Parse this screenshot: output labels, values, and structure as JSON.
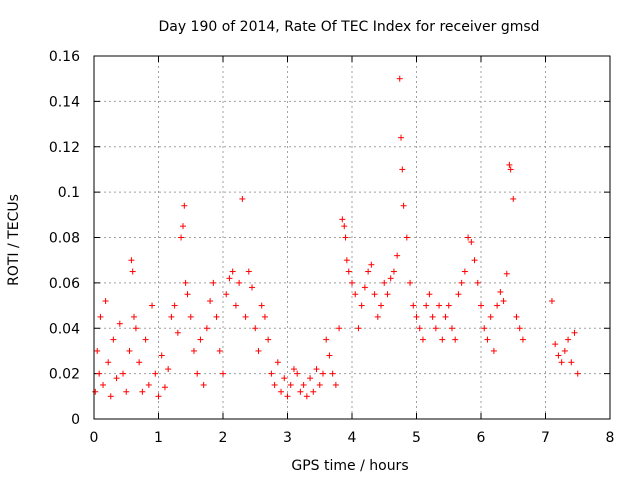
{
  "chart_data": {
    "type": "scatter",
    "title": "Day 190 of 2014, Rate Of TEC Index for receiver gmsd",
    "xlabel": "GPS time / hours",
    "ylabel": "ROTI / TECUs",
    "xlim": [
      0,
      8
    ],
    "ylim": [
      0,
      0.16
    ],
    "grid": true,
    "marker": "+",
    "color": "#ff0000",
    "xticks": [
      "0",
      "1",
      "2",
      "3",
      "4",
      "5",
      "6",
      "7",
      "8"
    ],
    "yticks": [
      "0",
      "0.02",
      "0.04",
      "0.06",
      "0.08",
      "0.1",
      "0.12",
      "0.14",
      "0.16"
    ],
    "series": [
      {
        "name": "ROTI",
        "x": [
          0.02,
          0.05,
          0.08,
          0.1,
          0.14,
          0.18,
          0.22,
          0.26,
          0.3,
          0.35,
          0.4,
          0.45,
          0.5,
          0.55,
          0.58,
          0.6,
          0.62,
          0.65,
          0.7,
          0.75,
          0.8,
          0.85,
          0.9,
          0.95,
          1.0,
          1.05,
          1.1,
          1.15,
          1.2,
          1.25,
          1.3,
          1.35,
          1.38,
          1.4,
          1.42,
          1.45,
          1.5,
          1.55,
          1.6,
          1.65,
          1.7,
          1.75,
          1.8,
          1.85,
          1.9,
          1.95,
          2.0,
          2.05,
          2.1,
          2.15,
          2.2,
          2.25,
          2.3,
          2.35,
          2.4,
          2.45,
          2.5,
          2.55,
          2.6,
          2.65,
          2.7,
          2.75,
          2.8,
          2.85,
          2.9,
          2.95,
          3.0,
          3.05,
          3.1,
          3.15,
          3.2,
          3.25,
          3.3,
          3.35,
          3.4,
          3.45,
          3.5,
          3.55,
          3.6,
          3.65,
          3.7,
          3.75,
          3.8,
          3.85,
          3.88,
          3.9,
          3.92,
          3.95,
          4.0,
          4.05,
          4.1,
          4.15,
          4.2,
          4.25,
          4.3,
          4.35,
          4.4,
          4.45,
          4.5,
          4.55,
          4.6,
          4.65,
          4.7,
          4.74,
          4.76,
          4.78,
          4.8,
          4.85,
          4.9,
          4.95,
          5.0,
          5.05,
          5.1,
          5.15,
          5.2,
          5.25,
          5.3,
          5.35,
          5.4,
          5.45,
          5.5,
          5.55,
          5.6,
          5.65,
          5.7,
          5.75,
          5.8,
          5.85,
          5.9,
          5.95,
          6.0,
          6.05,
          6.1,
          6.15,
          6.2,
          6.25,
          6.3,
          6.35,
          6.4,
          6.44,
          6.46,
          6.5,
          6.55,
          6.6,
          6.65,
          7.1,
          7.15,
          7.2,
          7.25,
          7.3,
          7.35,
          7.4,
          7.45,
          7.5
        ],
        "y": [
          0.012,
          0.03,
          0.02,
          0.045,
          0.015,
          0.052,
          0.025,
          0.01,
          0.035,
          0.018,
          0.042,
          0.02,
          0.012,
          0.03,
          0.07,
          0.065,
          0.045,
          0.04,
          0.025,
          0.012,
          0.035,
          0.015,
          0.05,
          0.02,
          0.01,
          0.028,
          0.014,
          0.022,
          0.045,
          0.05,
          0.038,
          0.08,
          0.085,
          0.094,
          0.06,
          0.055,
          0.045,
          0.03,
          0.02,
          0.035,
          0.015,
          0.04,
          0.052,
          0.06,
          0.045,
          0.03,
          0.02,
          0.055,
          0.062,
          0.065,
          0.05,
          0.06,
          0.097,
          0.045,
          0.065,
          0.058,
          0.04,
          0.03,
          0.05,
          0.045,
          0.035,
          0.02,
          0.015,
          0.025,
          0.012,
          0.018,
          0.01,
          0.015,
          0.022,
          0.02,
          0.012,
          0.015,
          0.01,
          0.018,
          0.012,
          0.022,
          0.015,
          0.02,
          0.035,
          0.028,
          0.02,
          0.015,
          0.04,
          0.088,
          0.085,
          0.08,
          0.07,
          0.065,
          0.06,
          0.055,
          0.04,
          0.05,
          0.058,
          0.065,
          0.068,
          0.055,
          0.045,
          0.05,
          0.06,
          0.055,
          0.062,
          0.065,
          0.072,
          0.15,
          0.124,
          0.11,
          0.094,
          0.08,
          0.06,
          0.05,
          0.045,
          0.04,
          0.035,
          0.05,
          0.055,
          0.045,
          0.04,
          0.05,
          0.035,
          0.045,
          0.05,
          0.04,
          0.035,
          0.055,
          0.06,
          0.065,
          0.08,
          0.078,
          0.07,
          0.06,
          0.05,
          0.04,
          0.035,
          0.045,
          0.03,
          0.05,
          0.056,
          0.052,
          0.064,
          0.112,
          0.11,
          0.097,
          0.045,
          0.04,
          0.035,
          0.052,
          0.033,
          0.028,
          0.025,
          0.03,
          0.035,
          0.025,
          0.038,
          0.02
        ]
      }
    ]
  }
}
